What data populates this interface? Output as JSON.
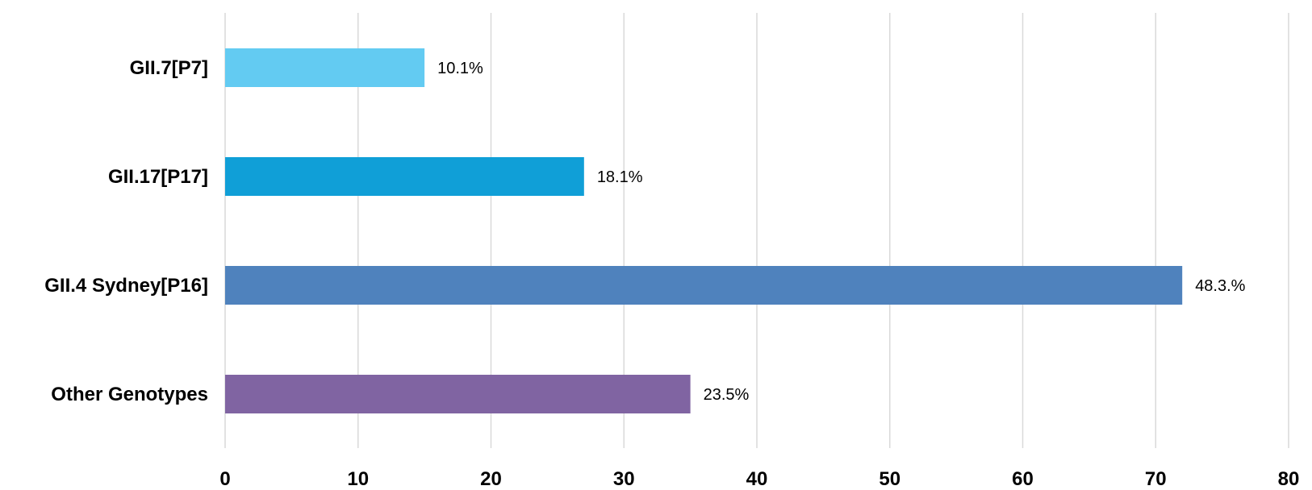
{
  "chart_data": {
    "type": "bar",
    "orientation": "horizontal",
    "title": "",
    "xlabel": "",
    "ylabel": "",
    "categories": [
      "GII.7[P7]",
      "GII.17[P17]",
      "GII.4 Sydney[P16]",
      "Other Genotypes"
    ],
    "values": [
      15,
      27,
      72,
      35
    ],
    "data_labels": [
      "10.1%",
      "18.1%",
      "48.3.%",
      "23.5%"
    ],
    "colors": [
      "#63cbf2",
      "#109fd7",
      "#4f82bd",
      "#8064a2"
    ],
    "xlim": [
      0,
      80
    ],
    "xticks": [
      0,
      10,
      20,
      30,
      40,
      50,
      60,
      70,
      80
    ],
    "xtick_labels": [
      "0",
      "10",
      "20",
      "30",
      "40",
      "50",
      "60",
      "70",
      "80"
    ],
    "grid": "vertical",
    "legend": "none"
  }
}
